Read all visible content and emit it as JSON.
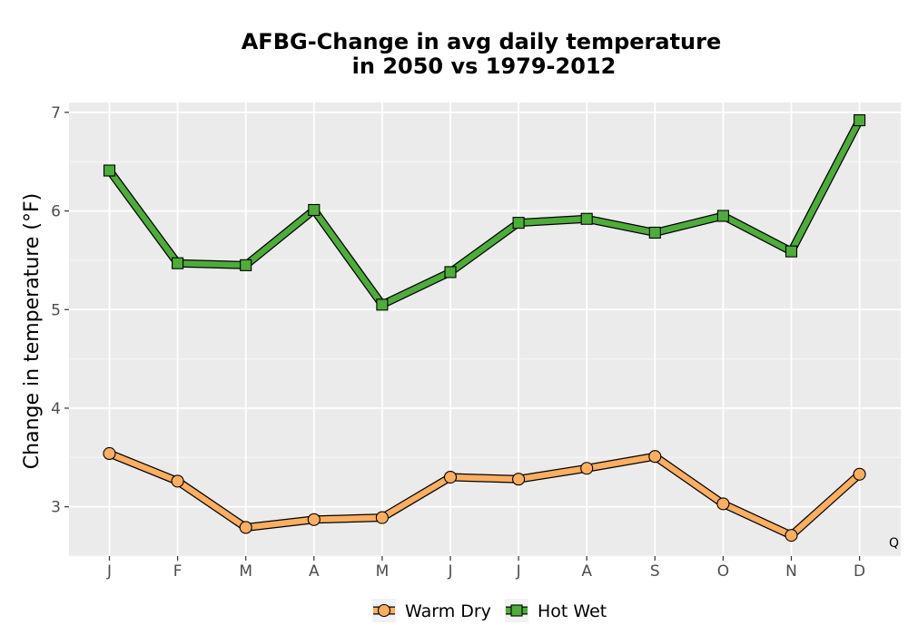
{
  "chart_data": {
    "type": "line",
    "title_line1": "AFBG-Change in avg daily temperature",
    "title_line2": "in 2050 vs 1979-2012",
    "xlabel": "",
    "ylabel": "Change in temperature (°F)",
    "categories": [
      "J",
      "F",
      "M",
      "A",
      "M",
      "J",
      "J",
      "A",
      "S",
      "O",
      "N",
      "D"
    ],
    "ylim": [
      2.5,
      7.1
    ],
    "yticks": [
      3,
      4,
      5,
      6,
      7
    ],
    "grid": true,
    "legend_position": "bottom",
    "corner_label": "Q",
    "series": [
      {
        "name": "Warm Dry",
        "color": "#FDAE61",
        "marker": "circle",
        "values": [
          3.54,
          3.26,
          2.79,
          2.87,
          2.89,
          3.3,
          3.28,
          3.39,
          3.51,
          3.03,
          2.71,
          3.33
        ]
      },
      {
        "name": "Hot Wet",
        "color": "#4DAC3A",
        "marker": "square",
        "values": [
          6.41,
          5.47,
          5.45,
          6.01,
          5.05,
          5.38,
          5.88,
          5.92,
          5.78,
          5.95,
          5.59,
          6.92
        ]
      }
    ]
  }
}
